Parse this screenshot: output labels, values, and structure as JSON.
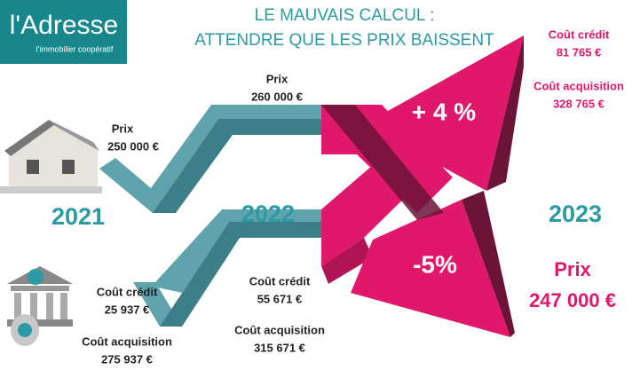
{
  "logo": {
    "name": "l'Adresse",
    "tagline": "l'immobilier coopératif"
  },
  "title": {
    "line1": "LE MAUVAIS CALCUL :",
    "line2": "ATTENDRE QUE LES PRIX BAISSENT"
  },
  "years": [
    "2021",
    "2022",
    "2023"
  ],
  "changes": [
    "+ 4 %",
    "-5%"
  ],
  "annotations": [
    {
      "label": "Prix",
      "value": "250 000 €"
    },
    {
      "label": "Prix",
      "value": "260 000 €"
    },
    {
      "label": "Coût crédit",
      "value": "25 937 €"
    },
    {
      "label": "Coût acquisition",
      "value": "275 937 €"
    },
    {
      "label": "Coût crédit",
      "value": "55 671 €"
    },
    {
      "label": "Coût acquisition",
      "value": "315 671 €"
    },
    {
      "label": "Coût crédit",
      "value": "81 765 €"
    },
    {
      "label": "Coût acquisition",
      "value": "328 765 €"
    },
    {
      "label": "Prix",
      "value": "247 000 €"
    }
  ]
}
